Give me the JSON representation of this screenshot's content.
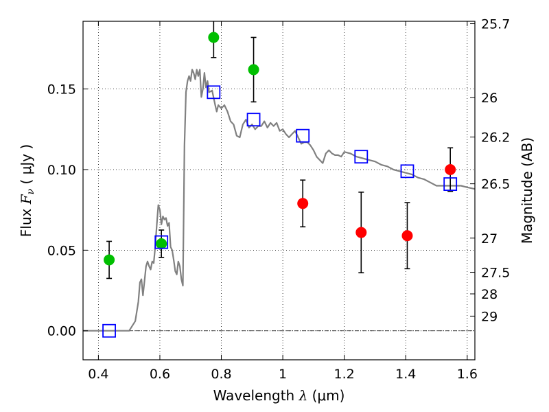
{
  "chart_data": {
    "type": "scatter",
    "title": "",
    "xlabel_parts": {
      "main": "Wavelength  ",
      "symbol": "λ",
      "unit": " (μm)"
    },
    "ylabel_parts": {
      "main": "Flux  ",
      "symbol": "F",
      "sub": "ν",
      "unit": "  ( μJy )"
    },
    "y2label": "Magnitude (AB)",
    "xlim": [
      0.35,
      1.625
    ],
    "ylim": [
      -0.018,
      0.192
    ],
    "grid": true,
    "x_ticks": [
      {
        "value": 0.4,
        "label": "0.4"
      },
      {
        "value": 0.6,
        "label": "0.6"
      },
      {
        "value": 0.8,
        "label": "0.8"
      },
      {
        "value": 1.0,
        "label": "1"
      },
      {
        "value": 1.2,
        "label": "1.2"
      },
      {
        "value": 1.4,
        "label": "1.4"
      },
      {
        "value": 1.6,
        "label": "1.6"
      }
    ],
    "y_ticks": [
      {
        "value": 0.0,
        "label": "0.00"
      },
      {
        "value": 0.05,
        "label": "0.05"
      },
      {
        "value": 0.1,
        "label": "0.10"
      },
      {
        "value": 0.15,
        "label": "0.15"
      }
    ],
    "y2_ticks": [
      {
        "flux": 0.1905,
        "label": "25.7"
      },
      {
        "flux": 0.1447,
        "label": "26"
      },
      {
        "flux": 0.1202,
        "label": "26.2"
      },
      {
        "flux": 0.0912,
        "label": "26.5"
      },
      {
        "flux": 0.0575,
        "label": "27"
      },
      {
        "flux": 0.0363,
        "label": "27.5"
      },
      {
        "flux": 0.0229,
        "label": "28"
      },
      {
        "flux": 0.0091,
        "label": "29"
      }
    ],
    "zero_line": 0.0,
    "series": [
      {
        "kind": "line",
        "color": "#808080",
        "x": [
          0.35,
          0.4,
          0.45,
          0.49,
          0.5,
          0.52,
          0.53,
          0.535,
          0.54,
          0.545,
          0.55,
          0.555,
          0.56,
          0.565,
          0.57,
          0.575,
          0.58,
          0.585,
          0.59,
          0.595,
          0.6,
          0.605,
          0.61,
          0.615,
          0.62,
          0.625,
          0.63,
          0.635,
          0.64,
          0.645,
          0.65,
          0.655,
          0.66,
          0.665,
          0.67,
          0.675,
          0.68,
          0.685,
          0.69,
          0.695,
          0.7,
          0.705,
          0.71,
          0.715,
          0.72,
          0.725,
          0.73,
          0.735,
          0.74,
          0.745,
          0.75,
          0.755,
          0.76,
          0.77,
          0.78,
          0.785,
          0.79,
          0.8,
          0.81,
          0.82,
          0.83,
          0.84,
          0.85,
          0.86,
          0.865,
          0.87,
          0.88,
          0.89,
          0.9,
          0.91,
          0.92,
          0.93,
          0.94,
          0.95,
          0.96,
          0.97,
          0.98,
          0.99,
          1.0,
          1.01,
          1.02,
          1.03,
          1.04,
          1.05,
          1.06,
          1.07,
          1.08,
          1.09,
          1.1,
          1.11,
          1.12,
          1.13,
          1.14,
          1.15,
          1.16,
          1.17,
          1.18,
          1.19,
          1.2,
          1.22,
          1.24,
          1.26,
          1.28,
          1.3,
          1.32,
          1.34,
          1.36,
          1.38,
          1.4,
          1.42,
          1.44,
          1.46,
          1.48,
          1.5,
          1.52,
          1.54,
          1.56,
          1.58,
          1.6,
          1.625
        ],
        "y": [
          0.0,
          0.0,
          0.0,
          0.0,
          0.0,
          0.006,
          0.018,
          0.03,
          0.032,
          0.022,
          0.031,
          0.04,
          0.043,
          0.04,
          0.038,
          0.043,
          0.042,
          0.052,
          0.066,
          0.078,
          0.075,
          0.066,
          0.071,
          0.069,
          0.07,
          0.065,
          0.067,
          0.052,
          0.05,
          0.044,
          0.037,
          0.035,
          0.043,
          0.04,
          0.032,
          0.028,
          0.115,
          0.148,
          0.155,
          0.158,
          0.155,
          0.162,
          0.16,
          0.156,
          0.162,
          0.158,
          0.162,
          0.145,
          0.15,
          0.16,
          0.151,
          0.155,
          0.148,
          0.149,
          0.14,
          0.136,
          0.14,
          0.138,
          0.14,
          0.136,
          0.13,
          0.128,
          0.121,
          0.12,
          0.124,
          0.128,
          0.131,
          0.126,
          0.128,
          0.125,
          0.127,
          0.127,
          0.13,
          0.126,
          0.129,
          0.127,
          0.129,
          0.124,
          0.125,
          0.122,
          0.12,
          0.122,
          0.124,
          0.12,
          0.116,
          0.117,
          0.117,
          0.115,
          0.112,
          0.108,
          0.106,
          0.104,
          0.11,
          0.112,
          0.11,
          0.109,
          0.109,
          0.108,
          0.111,
          0.11,
          0.108,
          0.107,
          0.106,
          0.105,
          0.103,
          0.102,
          0.1,
          0.099,
          0.098,
          0.097,
          0.095,
          0.094,
          0.092,
          0.09,
          0.09,
          0.09,
          0.09,
          0.09,
          0.089,
          0.088
        ]
      },
      {
        "kind": "points",
        "marker": "circle",
        "color": "#00bf00",
        "x": [
          0.435,
          0.605,
          0.775,
          0.905
        ],
        "y": [
          0.044,
          0.054,
          0.182,
          0.162
        ],
        "yerr": [
          0.0115,
          0.0085,
          0.0125,
          0.02
        ]
      },
      {
        "kind": "points",
        "marker": "circle",
        "color": "#ff0000",
        "x": [
          1.065,
          1.255,
          1.405,
          1.545
        ],
        "y": [
          0.079,
          0.061,
          0.059,
          0.1
        ],
        "yerr": [
          0.0145,
          0.025,
          0.0205,
          0.0135
        ]
      },
      {
        "kind": "points",
        "marker": "open-square",
        "color": "#0000ff",
        "x": [
          0.435,
          0.605,
          0.775,
          0.905,
          1.065,
          1.255,
          1.405,
          1.545
        ],
        "y": [
          0.0,
          0.055,
          0.148,
          0.131,
          0.121,
          0.108,
          0.099,
          0.091
        ]
      }
    ]
  }
}
